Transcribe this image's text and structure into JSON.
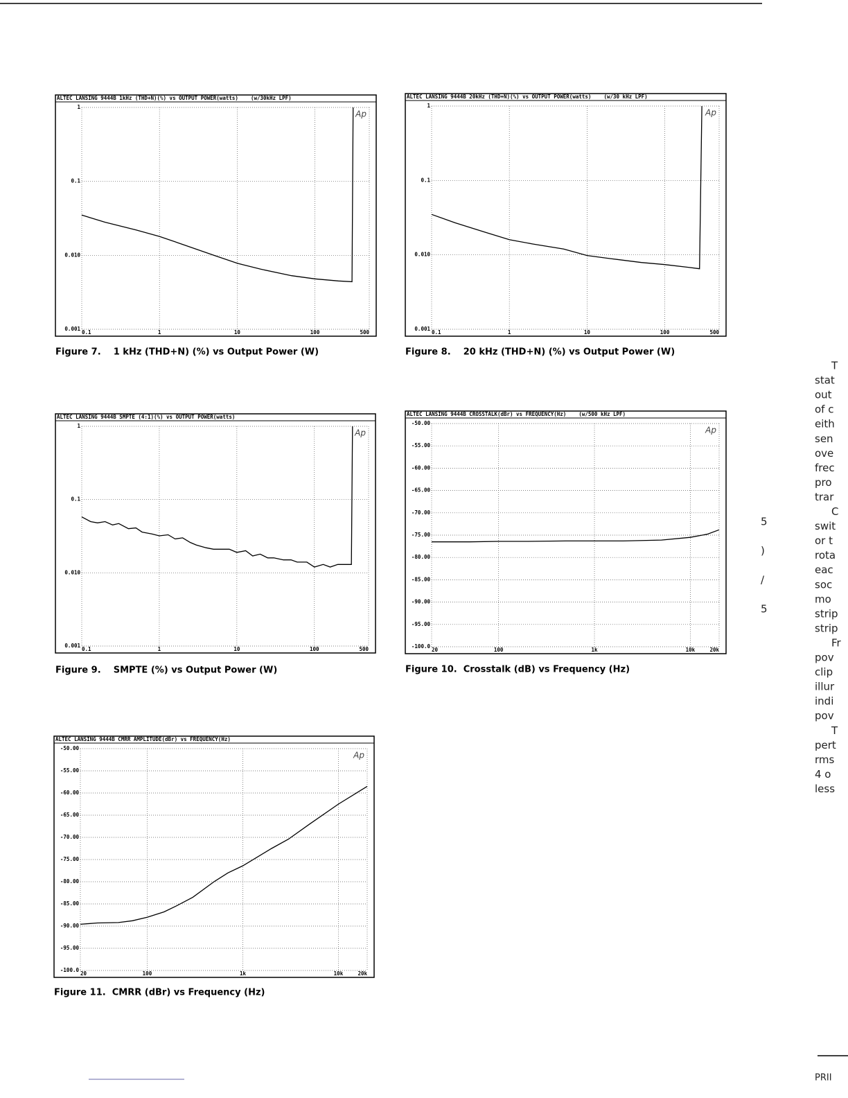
{
  "chart_data": [
    {
      "type": "line",
      "title": "ALTEC LANSING 9444B 1kHz (THD+N)(%) vs OUTPUT POWER(watts)    (w/30kHz LPF)",
      "annotation": "Ap",
      "caption": "Figure 7.    1 kHz (THD+N) (%) vs Output Power (W)",
      "xlog": true,
      "ylog": true,
      "grid": true,
      "color": "#000000",
      "xlim": [
        0.1,
        500
      ],
      "xticks": [
        0.1,
        1,
        10,
        100,
        500
      ],
      "ylim": [
        0.001,
        1
      ],
      "yticks": [
        1,
        0.1,
        {
          "value": 0.01,
          "label": "0.010"
        },
        0.001
      ],
      "x": [
        0.1,
        0.2,
        0.5,
        1,
        2,
        5,
        10,
        20,
        50,
        100,
        200,
        300,
        310
      ],
      "values": [
        0.035,
        0.028,
        0.022,
        0.018,
        0.014,
        0.01,
        0.0078,
        0.0065,
        0.0053,
        0.0048,
        0.0045,
        0.0044,
        1
      ]
    },
    {
      "type": "line",
      "title": "ALTEC LANSING 9444B 20kHz (THD+N)(%) vs OUTPUT POWER(watts)    (w/30 kHz LPF)",
      "annotation": "Ap",
      "caption": "Figure 8.    20 kHz (THD+N) (%) vs Output Power (W)",
      "xlog": true,
      "ylog": true,
      "grid": true,
      "color": "#000000",
      "xlim": [
        0.1,
        500
      ],
      "xticks": [
        0.1,
        1,
        10,
        100,
        500
      ],
      "ylim": [
        0.001,
        1
      ],
      "yticks": [
        1,
        0.1,
        {
          "value": 0.01,
          "label": "0.010"
        },
        0.001
      ],
      "x": [
        0.1,
        0.2,
        0.5,
        1,
        2,
        5,
        10,
        20,
        50,
        100,
        200,
        280,
        300
      ],
      "values": [
        0.035,
        0.027,
        0.02,
        0.016,
        0.014,
        0.012,
        0.0098,
        0.0089,
        0.0079,
        0.0074,
        0.0068,
        0.0065,
        1
      ]
    },
    {
      "type": "line",
      "title": "ALTEC LANSING 9444B SMPTE (4:1)(%) vs OUTPUT POWER(watts)",
      "annotation": "Ap",
      "caption": "Figure 9.    SMPTE (%) vs Output Power (W)",
      "xlog": true,
      "ylog": true,
      "grid": true,
      "color": "#000000",
      "xlim": [
        0.1,
        500
      ],
      "xticks": [
        0.1,
        1,
        10,
        100,
        500
      ],
      "ylim": [
        0.001,
        1
      ],
      "yticks": [
        1,
        0.1,
        {
          "value": 0.01,
          "label": "0.010"
        },
        0.001
      ],
      "x": [
        0.1,
        0.13,
        0.16,
        0.2,
        0.25,
        0.3,
        0.4,
        0.5,
        0.6,
        0.8,
        1,
        1.3,
        1.6,
        2,
        2.5,
        3,
        4,
        5,
        6,
        8,
        10,
        13,
        16,
        20,
        25,
        30,
        40,
        50,
        60,
        80,
        100,
        130,
        160,
        200,
        250,
        300,
        310
      ],
      "values": [
        0.058,
        0.05,
        0.048,
        0.05,
        0.045,
        0.047,
        0.04,
        0.041,
        0.036,
        0.034,
        0.032,
        0.033,
        0.029,
        0.03,
        0.026,
        0.024,
        0.022,
        0.021,
        0.021,
        0.021,
        0.019,
        0.02,
        0.017,
        0.018,
        0.016,
        0.016,
        0.015,
        0.015,
        0.014,
        0.014,
        0.012,
        0.013,
        0.012,
        0.013,
        0.013,
        0.013,
        1
      ]
    },
    {
      "type": "line",
      "title": "ALTEC LANSING 9444B CROSSTALK(dBr) vs FREQUENCY(Hz)    (w/500 kHz LPF)",
      "annotation": "Ap",
      "caption": "Figure 10.  Crosstalk (dB) vs Frequency (Hz)",
      "xlog": true,
      "ylog": false,
      "grid": true,
      "color": "#000000",
      "xlim": [
        20,
        20000
      ],
      "xticks": [
        20,
        100,
        {
          "value": 1000,
          "label": "1k"
        },
        {
          "value": 10000,
          "label": "10k"
        },
        {
          "value": 20000,
          "label": "20k"
        }
      ],
      "ylim": [
        -100,
        -50
      ],
      "yticks": [
        {
          "value": -50,
          "label": "-50.00"
        },
        {
          "value": -55,
          "label": "-55.00"
        },
        {
          "value": -60,
          "label": "-60.00"
        },
        {
          "value": -65,
          "label": "-65.00"
        },
        {
          "value": -70,
          "label": "-70.00"
        },
        {
          "value": -75,
          "label": "-75.00"
        },
        {
          "value": -80,
          "label": "-80.00"
        },
        {
          "value": -85,
          "label": "-85.00"
        },
        {
          "value": -90,
          "label": "-90.00"
        },
        {
          "value": -95,
          "label": "-95.00"
        },
        {
          "value": -100,
          "label": "-100.0"
        }
      ],
      "x": [
        20,
        50,
        100,
        200,
        500,
        1000,
        2000,
        5000,
        10000,
        15000,
        20000
      ],
      "values": [
        -76.5,
        -76.5,
        -76.4,
        -76.4,
        -76.3,
        -76.3,
        -76.3,
        -76.1,
        -75.5,
        -74.8,
        -73.8
      ]
    },
    {
      "type": "line",
      "title": "ALTEC LANSING 9444B CMRR AMPLITUDE(dBr) vs FREQUENCY(Hz)",
      "annotation": "Ap",
      "caption": "Figure 11.  CMRR (dBr) vs Frequency (Hz)",
      "xlog": true,
      "ylog": false,
      "grid": true,
      "color": "#000000",
      "xlim": [
        20,
        20000
      ],
      "xticks": [
        20,
        100,
        {
          "value": 1000,
          "label": "1k"
        },
        {
          "value": 10000,
          "label": "10k"
        },
        {
          "value": 20000,
          "label": "20k"
        }
      ],
      "ylim": [
        -100,
        -50
      ],
      "yticks": [
        {
          "value": -50,
          "label": "-50.00"
        },
        {
          "value": -55,
          "label": "-55.00"
        },
        {
          "value": -60,
          "label": "-60.00"
        },
        {
          "value": -65,
          "label": "-65.00"
        },
        {
          "value": -70,
          "label": "-70.00"
        },
        {
          "value": -75,
          "label": "-75.00"
        },
        {
          "value": -80,
          "label": "-80.00"
        },
        {
          "value": -85,
          "label": "-85.00"
        },
        {
          "value": -90,
          "label": "-90.00"
        },
        {
          "value": -95,
          "label": "-95.00"
        },
        {
          "value": -100,
          "label": "-100.0"
        }
      ],
      "x": [
        20,
        30,
        50,
        70,
        100,
        150,
        200,
        300,
        500,
        700,
        1000,
        2000,
        3000,
        5000,
        10000,
        20000
      ],
      "values": [
        -89.6,
        -89.3,
        -89.2,
        -88.8,
        -88,
        -86.8,
        -85.5,
        -83.5,
        -80,
        -78,
        -76.4,
        -72.5,
        -70.4,
        -67,
        -62.5,
        -58.5
      ]
    }
  ],
  "side_text": [
    "T",
    "stat",
    "out",
    "of c",
    "eith",
    "sen",
    "ove",
    "frec",
    "pro",
    "trar",
    "C",
    "swit",
    "or t",
    "rota",
    "eac",
    "soc",
    "mo",
    "strip",
    "strip",
    "Fr",
    "pov",
    "clip",
    "illur",
    "indi",
    "pov",
    "T",
    "pert",
    "rms",
    "4 o",
    "less"
  ],
  "margin_glyphs": [
    "5",
    ")",
    "/",
    "5"
  ],
  "footer": "PRII"
}
